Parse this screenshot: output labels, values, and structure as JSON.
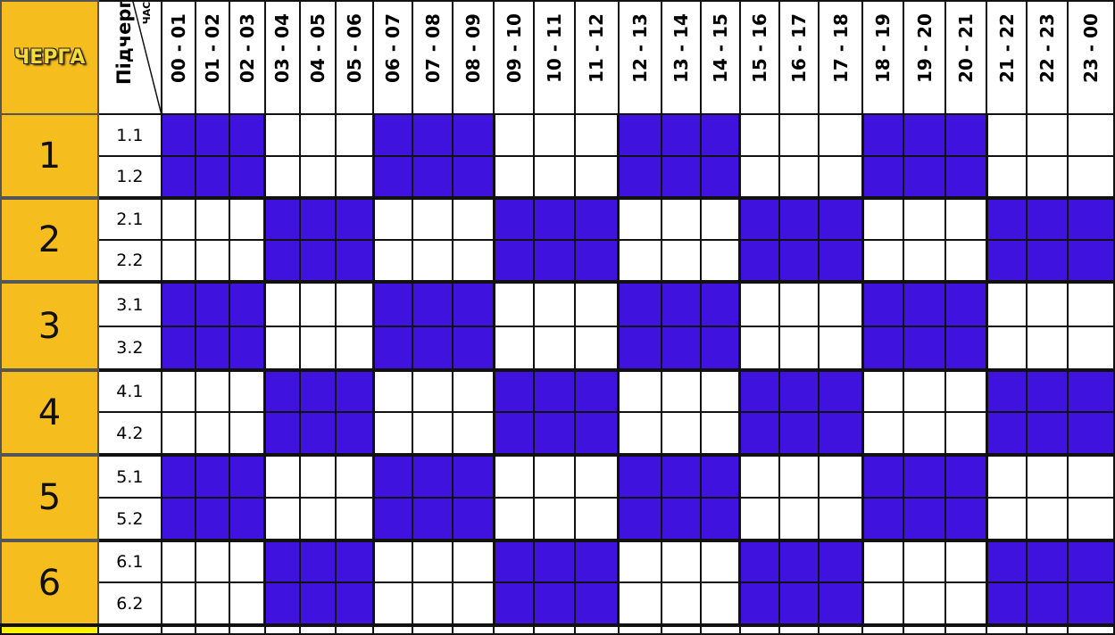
{
  "header": {
    "queue_label": "ЧЕРГА",
    "subqueue_label": "Підчерга",
    "hour_label": "ЧАС"
  },
  "hours": [
    "00 - 01",
    "01 - 02",
    "02 - 03",
    "03 - 04",
    "04 - 05",
    "05 - 06",
    "06 - 07",
    "07 - 08",
    "08 - 09",
    "09 - 10",
    "10 - 11",
    "11 - 12",
    "12 - 13",
    "13 - 14",
    "14 - 15",
    "15 - 16",
    "16 - 17",
    "17 - 18",
    "18 - 19",
    "19 - 20",
    "20 - 21",
    "21 - 22",
    "22 - 23",
    "23 - 00"
  ],
  "colors": {
    "queue_bg": "#F5BE1E",
    "outage": "#3F12DE",
    "power_on": "#FFFFFF"
  },
  "queues": [
    {
      "label": "1",
      "subqueues": [
        {
          "label": "1.1",
          "outage": [
            1,
            1,
            1,
            0,
            0,
            0,
            1,
            1,
            1,
            0,
            0,
            0,
            1,
            1,
            1,
            0,
            0,
            0,
            1,
            1,
            1,
            0,
            0,
            0
          ]
        },
        {
          "label": "1.2",
          "outage": [
            1,
            1,
            1,
            0,
            0,
            0,
            1,
            1,
            1,
            0,
            0,
            0,
            1,
            1,
            1,
            0,
            0,
            0,
            1,
            1,
            1,
            0,
            0,
            0
          ]
        }
      ]
    },
    {
      "label": "2",
      "subqueues": [
        {
          "label": "2.1",
          "outage": [
            0,
            0,
            0,
            1,
            1,
            1,
            0,
            0,
            0,
            1,
            1,
            1,
            0,
            0,
            0,
            1,
            1,
            1,
            0,
            0,
            0,
            1,
            1,
            1
          ]
        },
        {
          "label": "2.2",
          "outage": [
            0,
            0,
            0,
            1,
            1,
            1,
            0,
            0,
            0,
            1,
            1,
            1,
            0,
            0,
            0,
            1,
            1,
            1,
            0,
            0,
            0,
            1,
            1,
            1
          ]
        }
      ]
    },
    {
      "label": "3",
      "subqueues": [
        {
          "label": "3.1",
          "outage": [
            1,
            1,
            1,
            0,
            0,
            0,
            1,
            1,
            1,
            0,
            0,
            0,
            1,
            1,
            1,
            0,
            0,
            0,
            1,
            1,
            1,
            0,
            0,
            0
          ]
        },
        {
          "label": "3.2",
          "outage": [
            1,
            1,
            1,
            0,
            0,
            0,
            1,
            1,
            1,
            0,
            0,
            0,
            1,
            1,
            1,
            0,
            0,
            0,
            1,
            1,
            1,
            0,
            0,
            0
          ]
        }
      ]
    },
    {
      "label": "4",
      "subqueues": [
        {
          "label": "4.1",
          "outage": [
            0,
            0,
            0,
            1,
            1,
            1,
            0,
            0,
            0,
            1,
            1,
            1,
            0,
            0,
            0,
            1,
            1,
            1,
            0,
            0,
            0,
            1,
            1,
            1
          ]
        },
        {
          "label": "4.2",
          "outage": [
            0,
            0,
            0,
            1,
            1,
            1,
            0,
            0,
            0,
            1,
            1,
            1,
            0,
            0,
            0,
            1,
            1,
            1,
            0,
            0,
            0,
            1,
            1,
            1
          ]
        }
      ]
    },
    {
      "label": "5",
      "subqueues": [
        {
          "label": "5.1",
          "outage": [
            1,
            1,
            1,
            0,
            0,
            0,
            1,
            1,
            1,
            0,
            0,
            0,
            1,
            1,
            1,
            0,
            0,
            0,
            1,
            1,
            1,
            0,
            0,
            0
          ]
        },
        {
          "label": "5.2",
          "outage": [
            1,
            1,
            1,
            0,
            0,
            0,
            1,
            1,
            1,
            0,
            0,
            0,
            1,
            1,
            1,
            0,
            0,
            0,
            1,
            1,
            1,
            0,
            0,
            0
          ]
        }
      ]
    },
    {
      "label": "6",
      "subqueues": [
        {
          "label": "6.1",
          "outage": [
            0,
            0,
            0,
            1,
            1,
            1,
            0,
            0,
            0,
            1,
            1,
            1,
            0,
            0,
            0,
            1,
            1,
            1,
            0,
            0,
            0,
            1,
            1,
            1
          ]
        },
        {
          "label": "6.2",
          "outage": [
            0,
            0,
            0,
            1,
            1,
            1,
            0,
            0,
            0,
            1,
            1,
            1,
            0,
            0,
            0,
            1,
            1,
            1,
            0,
            0,
            0,
            1,
            1,
            1
          ]
        }
      ]
    }
  ]
}
